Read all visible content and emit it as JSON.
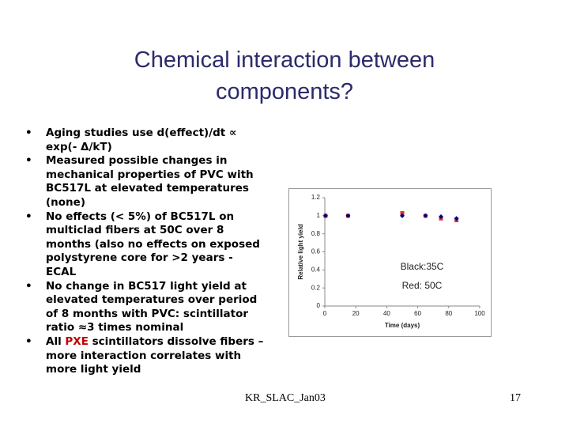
{
  "title": [
    "Chemical interaction between",
    "components?"
  ],
  "bullets": [
    "Aging studies use  d(effect)/dt ∝ exp(- Δ/kT)",
    "Measured possible changes in mechanical properties of PVC with BC517L at elevated temperatures (none)",
    "No effects (< 5%) of BC517L on multiclad fibers at 50C over 8 months (also no effects on exposed polystyrene core for >2 years - ECAL",
    "No change in BC517 light yield at elevated temperatures over period of 8 months with PVC: scintillator ratio ≈3 times nominal",
    [
      "All ",
      "PXE",
      " scintillators dissolve fibers – more interaction correlates with more light yield"
    ]
  ],
  "footer": "KR_SLAC_Jan03",
  "page_number": "17",
  "chart_data": {
    "type": "scatter",
    "x_label": "Time (days)",
    "y_label": "Relative light yield",
    "xlim": [
      0,
      100
    ],
    "xticks": [
      0,
      20,
      40,
      60,
      80,
      100
    ],
    "ylim": [
      0,
      1.2
    ],
    "yticks": [
      0,
      0.2,
      0.4,
      0.6,
      0.8,
      1,
      1.2
    ],
    "annotations": [
      "Black:35C",
      "Red: 50C"
    ],
    "series": [
      {
        "color": "#e03030",
        "x": [
          0.5,
          15,
          50,
          65,
          75,
          85
        ],
        "values": [
          1.0,
          1.0,
          1.03,
          1.0,
          0.97,
          0.95
        ]
      },
      {
        "color": "#000080",
        "x": [
          0.5,
          15,
          50,
          65,
          75,
          85
        ],
        "values": [
          1.0,
          1.0,
          1.0,
          1.0,
          0.99,
          0.97
        ]
      }
    ]
  }
}
